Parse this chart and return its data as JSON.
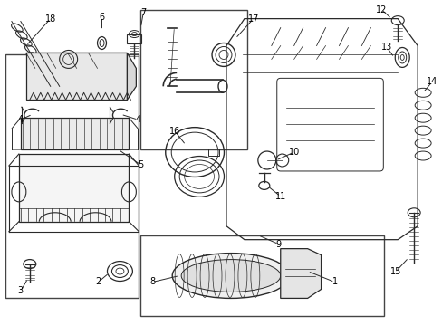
{
  "bg_color": "#ffffff",
  "line_color": "#2a2a2a",
  "label_color": "#000000",
  "fig_width": 4.89,
  "fig_height": 3.6,
  "dpi": 100,
  "label_fontsize": 7.0
}
